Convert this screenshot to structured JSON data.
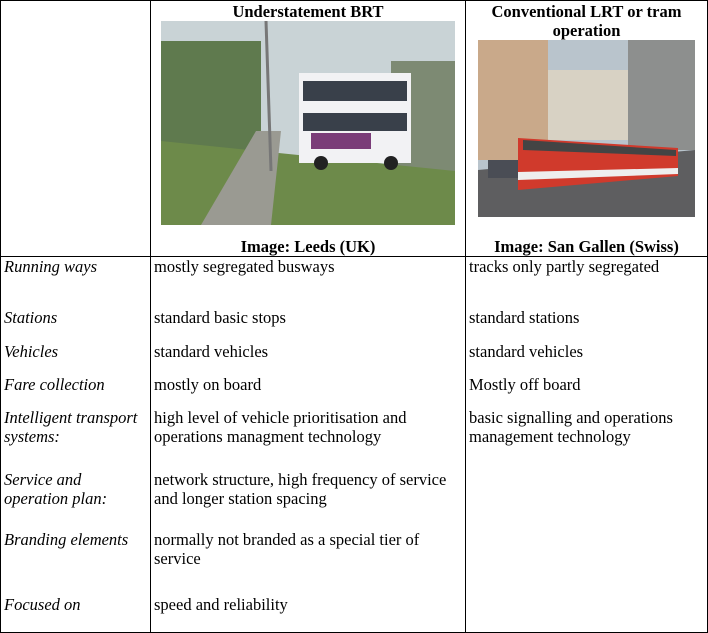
{
  "table": {
    "columns": [
      {
        "title": "Understatement BRT",
        "caption": "Image: Leeds (UK)"
      },
      {
        "title": "Conventional LRT or tram operation",
        "caption": "Image: San Gallen (Swiss)"
      }
    ],
    "rows": [
      [
        "Running ways",
        "mostly segregated busways",
        "tracks only partly segregated"
      ],
      [
        "Stations",
        "standard basic stops",
        "standard stations"
      ],
      [
        "Vehicles",
        "standard  vehicles",
        "standard vehicles"
      ],
      [
        "Fare collection",
        "mostly on board",
        "Mostly off board"
      ],
      [
        "Intelligent transport systems:",
        "high level of vehicle prioritisation and operations managment technology",
        "basic signalling and operations management technology"
      ],
      [
        "Service and operation plan:",
        "network structure, high frequency of service and longer station spacing"
      ],
      [
        "Branding elements",
        "normally not branded  as a special tier of service"
      ],
      [
        "Focused on",
        "speed and reliability"
      ]
    ]
  }
}
